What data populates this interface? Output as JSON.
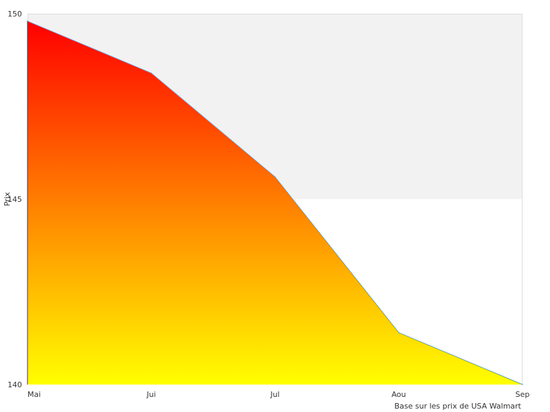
{
  "chart_data": {
    "type": "area",
    "title": "",
    "xlabel": "",
    "ylabel": "Prix",
    "categories": [
      "Mai",
      "Jui",
      "Jul",
      "Aou",
      "Sep"
    ],
    "series": [
      {
        "values": [
          149.8,
          148.4,
          145.6,
          141.4,
          140.0
        ]
      }
    ],
    "ylim": [
      140,
      150
    ],
    "y_ticks": [
      "140",
      "145",
      "150"
    ],
    "bands": [
      {
        "from": 145,
        "to": 150,
        "color": "#f2f2f2"
      },
      {
        "from": 140,
        "to": 145,
        "color": "#ffffff"
      }
    ],
    "gradient": {
      "top": "#ff0000",
      "bottom": "#ffff00"
    },
    "line_color": "#5b9bd5",
    "grid": false,
    "annotation": "Base sur les prix de USA Walmart"
  }
}
